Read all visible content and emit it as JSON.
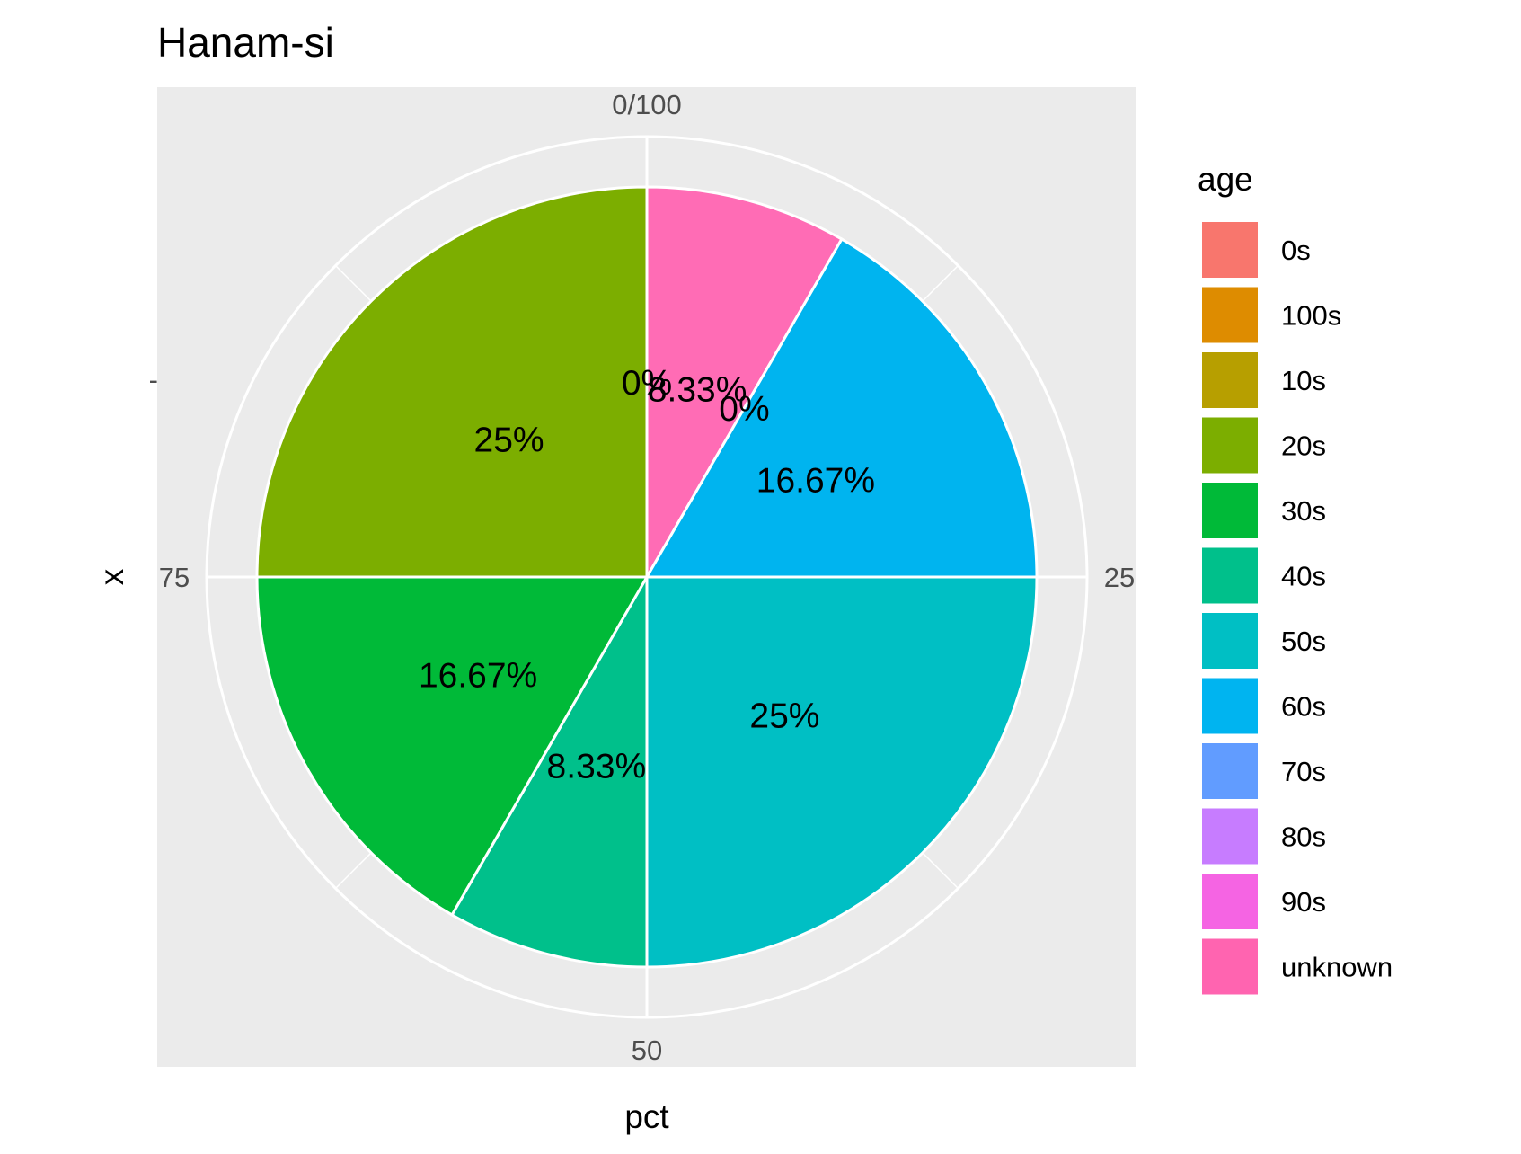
{
  "chart_data": {
    "type": "pie",
    "title": "Hanam-si",
    "xlabel": "pct",
    "ylabel": "x",
    "y_tick_label": "-",
    "theta_ticks": [
      {
        "value": 0,
        "label": "0/100"
      },
      {
        "value": 25,
        "label": "25"
      },
      {
        "value": 50,
        "label": "50"
      },
      {
        "value": 75,
        "label": "75"
      }
    ],
    "legend_title": "age",
    "legend_position": "right",
    "categories": [
      "0s",
      "100s",
      "10s",
      "20s",
      "30s",
      "40s",
      "50s",
      "60s",
      "70s",
      "80s",
      "90s",
      "unknown"
    ],
    "colors": [
      "#F8766D",
      "#DB8E00",
      "#AEA200",
      "#64B200",
      "#00BD5C",
      "#00C1A7",
      "#00BADE",
      "#00A6FF",
      "#B385FF",
      "#EF67EB",
      "#FF63B6",
      "#FF6C91"
    ],
    "slices": [
      {
        "category": "unknown",
        "value": 8.33,
        "label": "8.33%",
        "color": "#FF6CB5"
      },
      {
        "category": "70s",
        "value": 0,
        "label": "0%",
        "color": "#619CFF"
      },
      {
        "category": "60s",
        "value": 16.67,
        "label": "16.67%",
        "color": "#00B4EF"
      },
      {
        "category": "50s",
        "value": 25,
        "label": "25%",
        "color": "#00BFC4"
      },
      {
        "category": "40s",
        "value": 8.33,
        "label": "8.33%",
        "color": "#00C08B"
      },
      {
        "category": "30s",
        "value": 16.67,
        "label": "16.67%",
        "color": "#00BA38"
      },
      {
        "category": "20s",
        "value": 25,
        "label": "25%",
        "color": "#7CAE00"
      },
      {
        "category": "0s",
        "value": 0,
        "label": "0%",
        "color": "#F8766D"
      }
    ],
    "legend": [
      {
        "label": "0s",
        "color": "#F8766D"
      },
      {
        "label": "100s",
        "color": "#DE8C00"
      },
      {
        "label": "10s",
        "color": "#B79F00"
      },
      {
        "label": "20s",
        "color": "#7CAE00"
      },
      {
        "label": "30s",
        "color": "#00BA38"
      },
      {
        "label": "40s",
        "color": "#00C08B"
      },
      {
        "label": "50s",
        "color": "#00BFC4"
      },
      {
        "label": "60s",
        "color": "#00B4F0"
      },
      {
        "label": "70s",
        "color": "#619CFF"
      },
      {
        "label": "80s",
        "color": "#C77CFF"
      },
      {
        "label": "90s",
        "color": "#F564E3"
      },
      {
        "label": "unknown",
        "color": "#FF64B0"
      }
    ],
    "panel_background": "#EBEBEB",
    "grid": true
  }
}
